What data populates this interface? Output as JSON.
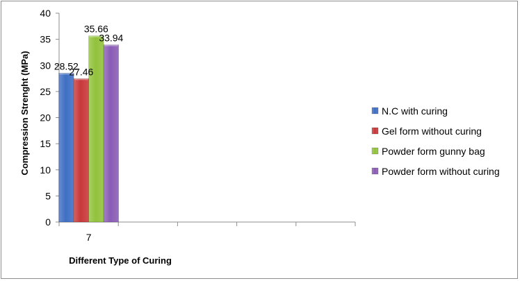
{
  "chart_data": {
    "type": "bar",
    "title": "",
    "xlabel": "Different Type of Curing",
    "ylabel": "Compression Strenght (MPa)",
    "categories": [
      "7"
    ],
    "ylim": [
      0,
      40
    ],
    "ytick_step": 5,
    "grid": false,
    "legend_position": "right",
    "series": [
      {
        "name": "N.C with curing",
        "values": [
          28.52
        ],
        "label": "28.52",
        "color": "#3f6fc4"
      },
      {
        "name": "Gel form without curing",
        "values": [
          27.46
        ],
        "label": "27.46",
        "color": "#c8383a"
      },
      {
        "name": "Powder form gunny bag",
        "values": [
          35.66
        ],
        "label": "35.66",
        "color": "#92c23c"
      },
      {
        "name": "Powder form without curing",
        "values": [
          33.94
        ],
        "label": "33.94",
        "color": "#8a5cb5"
      }
    ],
    "empty_category_slots": 4
  }
}
